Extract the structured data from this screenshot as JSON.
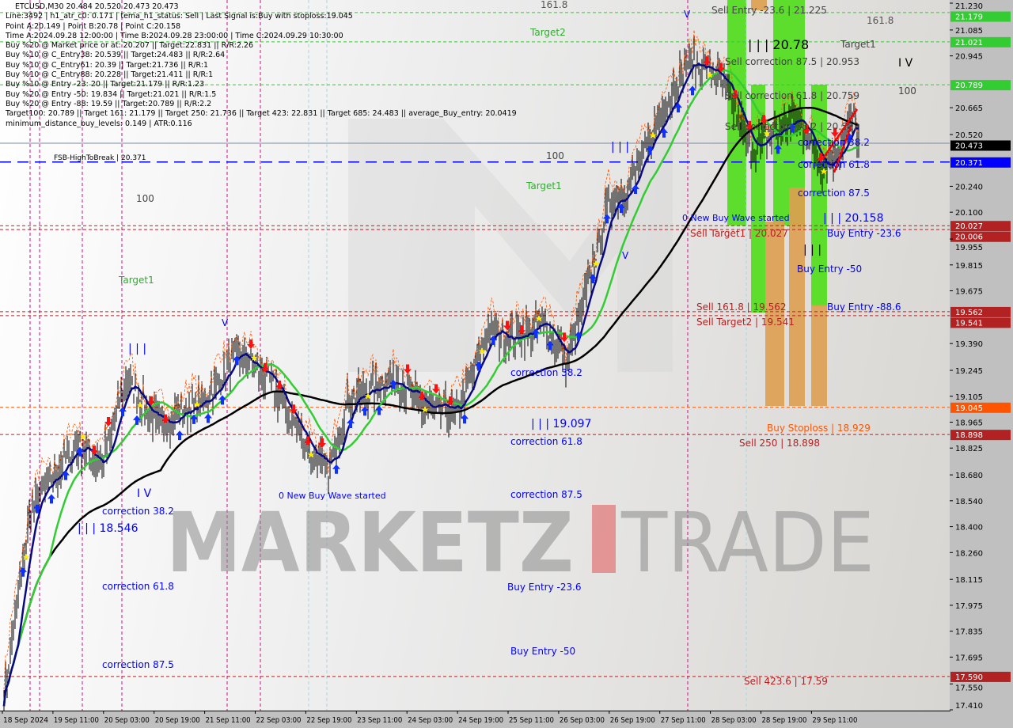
{
  "header": {
    "symbol_line": "ETCUSD,M30  20.484 20.520 20.473 20.473",
    "info_lines": [
      "Line:3492 | h1_atr_c0: 0.171 | tema_h1_status: Sell | Last Signal is:Buy with stoploss:19.045",
      "Point A:20.149 | Point B:20.78 | Point C:20.158",
      "Time A:2024.09.28 12:00:00 | Time B:2024.09.28 23:00:00 | Time C:2024.09.29 10:30:00",
      "Buy %20 @ Market price or at: 20.207 || Target:22.831 || R/R:2.26",
      "Buy %10 @ C_Entry38: 20.539 || Target:24.483 || R/R:2.64",
      "Buy %10 @ C_Entry61: 20.39 || Target:21.736 || R/R:1",
      "Buy %10 @ C_Entry88: 20.228 || Target:21.411 || R/R:1",
      "Buy %10 @ Entry -23: 20 || Target:21.179 || R/R:1.23",
      "Buy %20 @ Entry -50: 19.834 || Target:21.021 || R/R:1.5",
      "Buy %20 @ Entry -88: 19.59 || Target:20.789 || R/R:2.2",
      "Target100: 20.789 || Target 161: 21.179 || Target 250: 21.736 || Target 423: 22.831 || Target 685: 24.483 || average_Buy_entry: 20.0419",
      "minimum_distance_buy_levels: 0.149 | ATR:0.116"
    ]
  },
  "watermark": {
    "left": "MARKETZ",
    "right": "TRADE"
  },
  "colors": {
    "up_arrow": "#1030ff",
    "down_arrow": "#ff1010",
    "slow_ma": "#000000",
    "mid_ma": "#33cc33",
    "fast_ma": "#0a0a80",
    "green_zone": "#55dd22",
    "orange_zone": "#dd9f4f",
    "label_blue": "#0000ff",
    "label_red": "#b22222"
  },
  "chart_data": {
    "type": "candlestick",
    "symbol": "ETCUSD",
    "timeframe": "M30",
    "ylim": [
      17.41,
      21.23
    ],
    "grid": false,
    "y_ticks": [
      "21.230",
      "21.085",
      "20.945",
      "20.665",
      "20.520",
      "20.240",
      "20.100",
      "19.955",
      "19.815",
      "19.675",
      "19.390",
      "19.245",
      "19.105",
      "18.965",
      "18.825",
      "18.680",
      "18.540",
      "18.400",
      "18.260",
      "18.115",
      "17.975",
      "17.835",
      "17.695",
      "17.550",
      "17.410"
    ],
    "x_ticks": [
      "18 Sep 2024",
      "19 Sep 11:00",
      "20 Sep 03:00",
      "20 Sep 19:00",
      "21 Sep 11:00",
      "22 Sep 03:00",
      "22 Sep 19:00",
      "23 Sep 11:00",
      "24 Sep 03:00",
      "24 Sep 19:00",
      "25 Sep 11:00",
      "26 Sep 03:00",
      "26 Sep 19:00",
      "27 Sep 11:00",
      "28 Sep 03:00",
      "28 Sep 19:00",
      "29 Sep 11:00"
    ],
    "price_path": [
      [
        "2024-09-18 20:00",
        17.49
      ],
      [
        "2024-09-19 04:30",
        18.5
      ],
      [
        "2024-09-19 19:30",
        18.85
      ],
      [
        "2024-09-20 03:00",
        18.73
      ],
      [
        "2024-09-20 10:30",
        19.2
      ],
      [
        "2024-09-20 20:30",
        18.95
      ],
      [
        "2024-09-21 11:30",
        19.08
      ],
      [
        "2024-09-21 21:30",
        19.33
      ],
      [
        "2024-09-22 07:30",
        19.2
      ],
      [
        "2024-09-22 20:00",
        18.83
      ],
      [
        "2024-09-23 02:30",
        18.69
      ],
      [
        "2024-09-23 08:30",
        19.08
      ],
      [
        "2024-09-23 23:30",
        19.2
      ],
      [
        "2024-09-24 09:30",
        19.03
      ],
      [
        "2024-09-24 19:30",
        19.03
      ],
      [
        "2024-09-25 05:30",
        19.46
      ],
      [
        "2024-09-25 13:00",
        19.42
      ],
      [
        "2024-09-25 23:00",
        19.5
      ],
      [
        "2024-09-26 05:30",
        19.29
      ],
      [
        "2024-09-26 11:30",
        19.63
      ],
      [
        "2024-09-26 19:00",
        20.14
      ],
      [
        "2024-09-27 02:30",
        20.27
      ],
      [
        "2024-09-27 12:30",
        20.66
      ],
      [
        "2024-09-27 20:00",
        20.91
      ],
      [
        "2024-09-28 03:30",
        20.87
      ],
      [
        "2024-09-28 08:30",
        20.74
      ],
      [
        "2024-09-28 16:00",
        20.44
      ],
      [
        "2024-09-28 23:30",
        20.53
      ],
      [
        "2024-09-29 07:00",
        20.61
      ],
      [
        "2024-09-29 14:30",
        20.35
      ],
      [
        "2024-09-29 19:30",
        20.44
      ],
      [
        "2024-09-30 00:30",
        20.61
      ],
      [
        "2024-09-30 02:00",
        20.47
      ]
    ],
    "levels": [
      {
        "price": 21.179,
        "label": "21.179",
        "color": "#33cc33",
        "style": "dashed"
      },
      {
        "price": 21.021,
        "label": "21.021",
        "color": "#33cc33",
        "style": "dashed"
      },
      {
        "price": 20.789,
        "label": "20.789",
        "color": "#33cc33",
        "style": "dashed"
      },
      {
        "price": 20.473,
        "label": "20.473",
        "color": "#000000",
        "style": "solid"
      },
      {
        "price": 20.371,
        "label": "20.371",
        "color": "#0000ff",
        "style": "longdash"
      },
      {
        "price": 20.027,
        "label": "20.027",
        "color": "#b22222",
        "style": "dashed"
      },
      {
        "price": 20.006,
        "label": "20.006",
        "color": "#b22222",
        "style": "dashed"
      },
      {
        "price": 19.562,
        "label": "19.562",
        "color": "#b22222",
        "style": "dashed"
      },
      {
        "price": 19.541,
        "label": "19.541",
        "color": "#b22222",
        "style": "dashed"
      },
      {
        "price": 19.045,
        "label": "19.045",
        "color": "#ff5500",
        "style": "dashed"
      },
      {
        "price": 18.898,
        "label": "18.898",
        "color": "#b22222",
        "style": "dashed"
      },
      {
        "price": 17.59,
        "label": "17.590",
        "color": "#b22222",
        "style": "dashed"
      }
    ],
    "annotations": [
      "Target2",
      "161.8",
      "Sell Entry -23.6 | 21.225",
      "| | | 20.78",
      "Target1",
      "Sell correction 87.5 | 20.953",
      "I V",
      "100",
      "Sell correction 61.8 | 20.759",
      "Sell correction 38.2 | 20.582",
      "correction 38.2",
      "correction 61.8",
      "correction 87.5",
      "0 New Buy Wave started",
      "| | | 20.158",
      "Sell Target1 | 20.027",
      "Buy Entry -23.6",
      "| | |",
      "Buy Entry -50",
      "Buy Entry -88.6",
      "Sell 161.8 | 19.562",
      "Sell Target2 | 19.541",
      "Buy Stoploss | 18.929",
      "Sell 250 | 18.898",
      "Sell 423.6 | 17.59",
      "FSB-HighToBreak | 20.371",
      "100",
      "100",
      "Target1",
      "Target1",
      "| | |",
      "V",
      "V",
      "V",
      "| | |",
      "I V",
      "correction 38.2",
      "| | | 18.546",
      "0 New Buy Wave started",
      "correction 61.8",
      "correction 87.5",
      "correction 38.2",
      "| | | 19.097",
      "correction 61.8",
      "correction 87.5",
      "Buy Entry -23.6",
      "Buy Entry -50",
      "161.8"
    ]
  }
}
